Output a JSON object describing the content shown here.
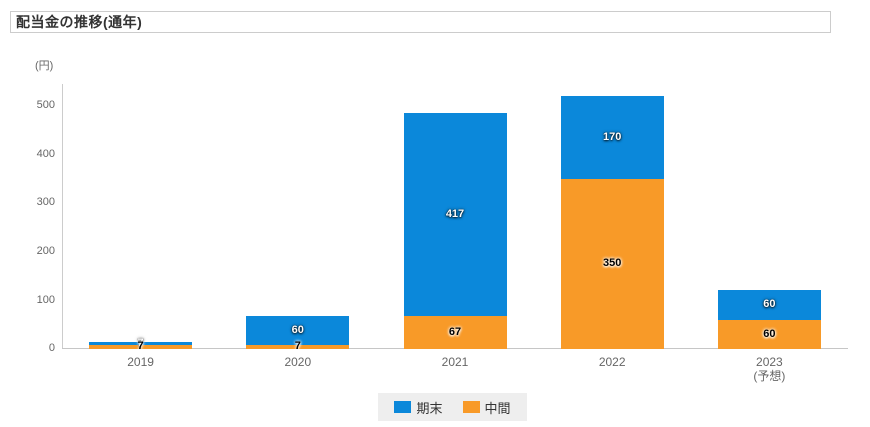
{
  "header": {
    "title": "配当金の推移(通年)"
  },
  "chart_data": {
    "type": "bar",
    "stacked": true,
    "title": "配当金の推移(通年)",
    "unit_label": "(円)",
    "categories": [
      "2019",
      "2020",
      "2021",
      "2022",
      "2023"
    ],
    "category_sublabels": [
      "",
      "",
      "",
      "",
      "(予想)"
    ],
    "series": [
      {
        "name": "期末",
        "color": "#0b88da",
        "values": [
          7,
          60,
          417,
          170,
          60
        ],
        "label_color": "#ffffff"
      },
      {
        "name": "中間",
        "color": "#f89a28",
        "values": [
          7,
          7,
          67,
          350,
          60
        ],
        "label_color": "#000000"
      }
    ],
    "totals": [
      14,
      67,
      484,
      520,
      120
    ],
    "ylim": [
      0,
      500
    ],
    "yticks": [
      0,
      100,
      200,
      300,
      400,
      500
    ],
    "grid": false,
    "legend_position": "bottom",
    "axis_color": "#cccccc",
    "tick_label_color": "#666666"
  }
}
